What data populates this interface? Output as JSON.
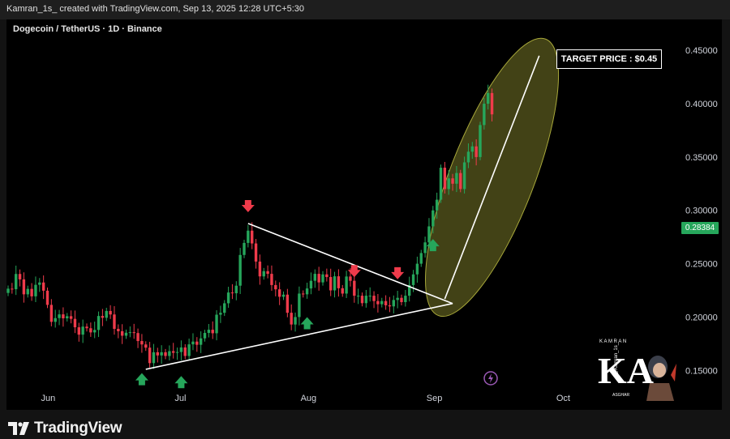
{
  "header": {
    "attribution": "Kamran_1s_ created with TradingView.com, Sep 13, 2025 12:28 UTC+5:30"
  },
  "chart_title": "Dogecoin / TetherUS · 1D · Binance",
  "footer": {
    "brand": "TradingView"
  },
  "annotation": {
    "target_label": "TARGET PRICE : $0.45"
  },
  "current_price_badge": "0.28384",
  "watermark": {
    "top_text": "KAMRAN",
    "monogram": "KA",
    "handle": "@Kamran_1s_",
    "bottom_text": "ASGHAR"
  },
  "colors": {
    "up": "#26a65b",
    "down": "#ef3b4b",
    "background": "#000000",
    "ellipse": "#8a8a2e"
  },
  "chart_data": {
    "type": "candlestick",
    "title": "Dogecoin / TetherUS · 1D · Binance",
    "xlabel": "",
    "ylabel": "",
    "x_ticks": [
      "Jun",
      "Jul",
      "Aug",
      "Sep",
      "Oct"
    ],
    "y_ticks": [
      0.45,
      0.4,
      0.35,
      0.3,
      0.25,
      0.2,
      0.15
    ],
    "y_tick_labels": [
      "0.45000",
      "0.40000",
      "0.35000",
      "0.30000",
      "0.25000",
      "0.20000",
      "0.15000"
    ],
    "ylim": [
      0.113,
      0.479
    ],
    "grid": false,
    "current_price": 0.28384,
    "closes": [
      0.2266,
      0.2261,
      0.2404,
      0.2353,
      0.2213,
      0.2264,
      0.2194,
      0.2302,
      0.2324,
      0.2247,
      0.2114,
      0.1955,
      0.199,
      0.2025,
      0.1988,
      0.2008,
      0.1983,
      0.1904,
      0.1835,
      0.191,
      0.1895,
      0.1856,
      0.1879,
      0.201,
      0.1993,
      0.2057,
      0.2024,
      0.1889,
      0.1867,
      0.1825,
      0.1853,
      0.1858,
      0.185,
      0.1775,
      0.1743,
      0.1713,
      0.1568,
      0.167,
      0.164,
      0.167,
      0.1635,
      0.168,
      0.1665,
      0.1672,
      0.1715,
      0.1635,
      0.1744,
      0.177,
      0.174,
      0.18,
      0.1851,
      0.1881,
      0.1848,
      0.2022,
      0.204,
      0.2129,
      0.223,
      0.2223,
      0.2294,
      0.2582,
      0.2695,
      0.281,
      0.269,
      0.252,
      0.2381,
      0.243,
      0.2405,
      0.23,
      0.226,
      0.219,
      0.221,
      0.204,
      0.193,
      0.2,
      0.222,
      0.2213,
      0.2268,
      0.234,
      0.2405,
      0.2325,
      0.24,
      0.2375,
      0.225,
      0.2382,
      0.227,
      0.222,
      0.238,
      0.234,
      0.22,
      0.22,
      0.213,
      0.22,
      0.22,
      0.215,
      0.212,
      0.215,
      0.211,
      0.21,
      0.216,
      0.218,
      0.214,
      0.22,
      0.23,
      0.24,
      0.25,
      0.26,
      0.27,
      0.285,
      0.3,
      0.31,
      0.34,
      0.32,
      0.33,
      0.325,
      0.335,
      0.32,
      0.345,
      0.355,
      0.36,
      0.35,
      0.38,
      0.4,
      0.41,
      0.39
    ],
    "events": {
      "sell_arrows_days": [
        61,
        88,
        99
      ],
      "buy_arrows_days": [
        34,
        44,
        76,
        108
      ],
      "descending_line": [
        [
          61,
          0.2877
        ],
        [
          113,
          0.2127
        ]
      ],
      "ascending_line": [
        [
          35,
          0.151
        ],
        [
          113,
          0.2127
        ]
      ],
      "projection_line": [
        [
          111,
          0.217
        ],
        [
          135,
          0.445
        ]
      ],
      "target_price": 0.45
    }
  }
}
